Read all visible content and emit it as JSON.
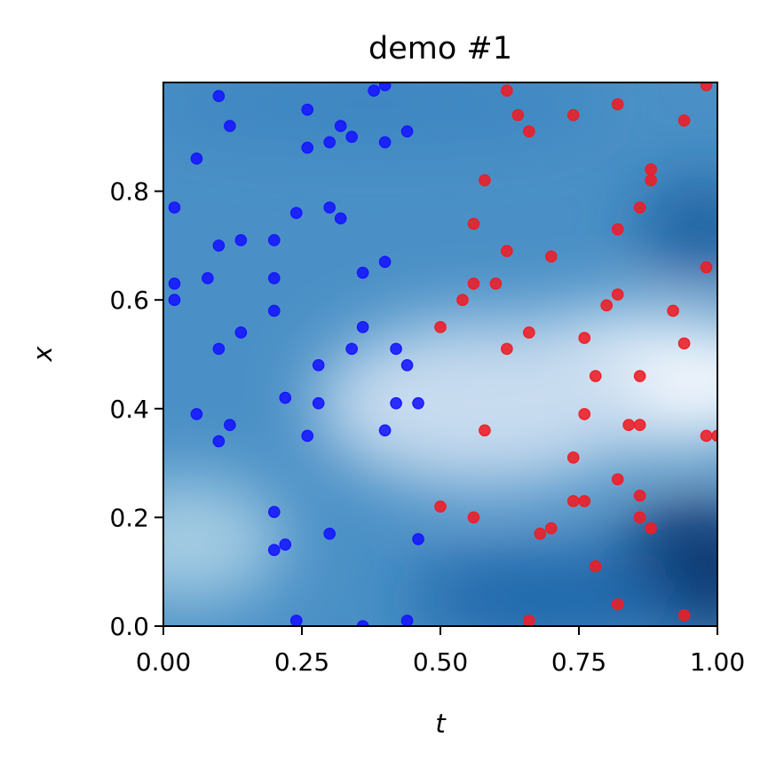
{
  "chart_data": {
    "type": "scatter",
    "title": "demo #1",
    "xlabel": "t",
    "ylabel": "x",
    "xlim": [
      0,
      1
    ],
    "ylim": [
      0,
      1
    ],
    "xticks": [
      "0.00",
      "0.25",
      "0.50",
      "0.75",
      "1.00"
    ],
    "yticks": [
      "0.0",
      "0.2",
      "0.4",
      "0.6",
      "0.8"
    ],
    "background": "heatmap",
    "grid": false,
    "colors": {
      "series_blue": "#1414ff",
      "series_red": "#ee1c24",
      "heat_dark": "#08306b",
      "heat_mid": "#4a90c6",
      "heat_light": "#eef5fc"
    },
    "series": [
      {
        "color": "blue",
        "points": [
          [
            0.1,
            0.975
          ],
          [
            0.12,
            0.92
          ],
          [
            0.06,
            0.86
          ],
          [
            0.02,
            0.77
          ],
          [
            0.02,
            0.63
          ],
          [
            0.02,
            0.6
          ],
          [
            0.08,
            0.64
          ],
          [
            0.1,
            0.7
          ],
          [
            0.14,
            0.71
          ],
          [
            0.1,
            0.51
          ],
          [
            0.14,
            0.54
          ],
          [
            0.06,
            0.39
          ],
          [
            0.1,
            0.34
          ],
          [
            0.12,
            0.37
          ],
          [
            0.2,
            0.71
          ],
          [
            0.2,
            0.64
          ],
          [
            0.2,
            0.58
          ],
          [
            0.26,
            0.95
          ],
          [
            0.26,
            0.88
          ],
          [
            0.3,
            0.89
          ],
          [
            0.32,
            0.92
          ],
          [
            0.34,
            0.9
          ],
          [
            0.24,
            0.76
          ],
          [
            0.3,
            0.77
          ],
          [
            0.32,
            0.75
          ],
          [
            0.38,
            0.985
          ],
          [
            0.4,
            0.995
          ],
          [
            0.4,
            0.89
          ],
          [
            0.44,
            0.91
          ],
          [
            0.4,
            0.67
          ],
          [
            0.36,
            0.65
          ],
          [
            0.36,
            0.55
          ],
          [
            0.34,
            0.51
          ],
          [
            0.28,
            0.48
          ],
          [
            0.28,
            0.41
          ],
          [
            0.22,
            0.42
          ],
          [
            0.26,
            0.35
          ],
          [
            0.42,
            0.51
          ],
          [
            0.44,
            0.48
          ],
          [
            0.42,
            0.41
          ],
          [
            0.4,
            0.36
          ],
          [
            0.46,
            0.41
          ],
          [
            0.2,
            0.21
          ],
          [
            0.2,
            0.14
          ],
          [
            0.22,
            0.15
          ],
          [
            0.3,
            0.17
          ],
          [
            0.46,
            0.16
          ],
          [
            0.24,
            0.01
          ],
          [
            0.36,
            0.0
          ],
          [
            0.44,
            0.01
          ]
        ]
      },
      {
        "color": "red",
        "points": [
          [
            0.62,
            0.985
          ],
          [
            0.64,
            0.94
          ],
          [
            0.66,
            0.91
          ],
          [
            0.74,
            0.94
          ],
          [
            0.82,
            0.96
          ],
          [
            0.98,
            0.995
          ],
          [
            0.94,
            0.93
          ],
          [
            0.58,
            0.82
          ],
          [
            0.88,
            0.84
          ],
          [
            0.88,
            0.82
          ],
          [
            0.56,
            0.74
          ],
          [
            0.86,
            0.77
          ],
          [
            0.82,
            0.73
          ],
          [
            0.62,
            0.69
          ],
          [
            0.7,
            0.68
          ],
          [
            0.98,
            0.66
          ],
          [
            0.56,
            0.63
          ],
          [
            0.6,
            0.63
          ],
          [
            0.54,
            0.6
          ],
          [
            0.82,
            0.61
          ],
          [
            0.8,
            0.59
          ],
          [
            0.92,
            0.58
          ],
          [
            0.5,
            0.55
          ],
          [
            0.66,
            0.54
          ],
          [
            0.76,
            0.53
          ],
          [
            0.94,
            0.52
          ],
          [
            0.62,
            0.51
          ],
          [
            0.78,
            0.46
          ],
          [
            0.86,
            0.46
          ],
          [
            0.76,
            0.39
          ],
          [
            0.84,
            0.37
          ],
          [
            0.86,
            0.37
          ],
          [
            0.58,
            0.36
          ],
          [
            0.98,
            0.35
          ],
          [
            1.0,
            0.35
          ],
          [
            0.74,
            0.31
          ],
          [
            0.82,
            0.27
          ],
          [
            0.86,
            0.24
          ],
          [
            0.74,
            0.23
          ],
          [
            0.76,
            0.23
          ],
          [
            0.5,
            0.22
          ],
          [
            0.56,
            0.2
          ],
          [
            0.86,
            0.2
          ],
          [
            0.7,
            0.18
          ],
          [
            0.68,
            0.17
          ],
          [
            0.88,
            0.18
          ],
          [
            0.78,
            0.11
          ],
          [
            0.82,
            0.04
          ],
          [
            0.66,
            0.01
          ],
          [
            0.94,
            0.02
          ]
        ]
      }
    ]
  }
}
